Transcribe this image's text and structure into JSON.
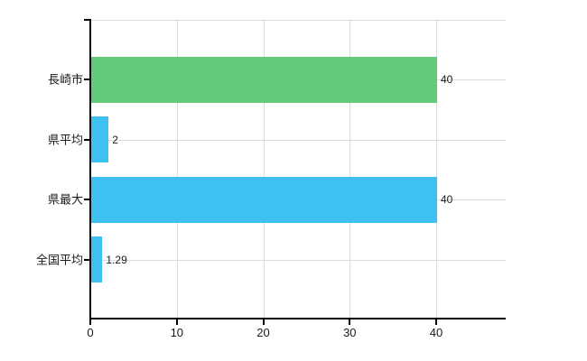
{
  "chart_data": {
    "type": "bar",
    "orientation": "horizontal",
    "title": "",
    "categories": [
      "長崎市",
      "県平均",
      "県最大",
      "全国平均"
    ],
    "values": [
      40,
      2,
      40,
      1.29
    ],
    "value_labels": [
      "40",
      "2",
      "40",
      "1.29"
    ],
    "bar_colors": [
      "#62cb79",
      "#3ec0f2",
      "#3ec0f2",
      "#3ec0f2"
    ],
    "x_ticks": [
      "0",
      "10",
      "20",
      "30",
      "40"
    ],
    "x_tick_values": [
      0,
      10,
      20,
      30,
      40
    ],
    "xlim": [
      0,
      48
    ],
    "grid": true,
    "legend": false
  },
  "colors": {
    "grid": "#dcdcdc",
    "axis": "#000000",
    "text": "#1a1a1a",
    "background": "#ffffff"
  }
}
